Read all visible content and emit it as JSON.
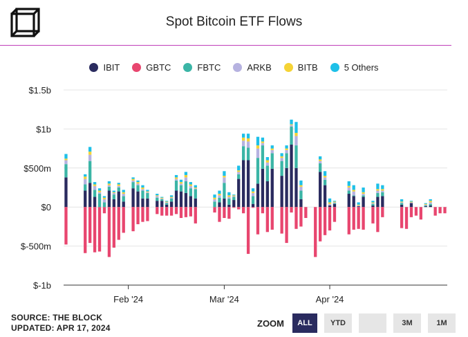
{
  "title": "Spot Bitcoin ETF Flows",
  "source": "SOURCE: THE BLOCK",
  "updated": "UPDATED: APR 17, 2024",
  "zoom": {
    "label": "ZOOM",
    "buttons": [
      "ALL",
      "YTD",
      "",
      "3M",
      "1M"
    ],
    "active": "ALL"
  },
  "colors": {
    "IBIT": "#2a2b5f",
    "GBTC": "#e8466f",
    "FBTC": "#3bb5a6",
    "ARKB": "#b6b2e0",
    "BITB": "#f5d335",
    "5 Others": "#1ec0e8"
  },
  "chart_data": {
    "type": "bar",
    "stacked": true,
    "title": "Spot Bitcoin ETF Flows",
    "ylim": [
      -1000,
      1500
    ],
    "yticks": [
      -1000,
      -500,
      0,
      500,
      1000,
      1500
    ],
    "ytick_labels": [
      "$-1b",
      "$-500m",
      "$0",
      "$500m",
      "$1b",
      "$1.5b"
    ],
    "xtick_labels": [
      "Feb '24",
      "Mar '24",
      "Apr '24"
    ],
    "xtick_positions": [
      13,
      33,
      55
    ],
    "legend": [
      "IBIT",
      "GBTC",
      "FBTC",
      "ARKB",
      "BITB",
      "5 Others"
    ],
    "units": "USD millions",
    "series": [
      {
        "name": "IBIT",
        "values": [
          380,
          0,
          0,
          0,
          210,
          310,
          130,
          0,
          0,
          210,
          100,
          200,
          70,
          0,
          240,
          200,
          110,
          110,
          0,
          80,
          80,
          30,
          70,
          210,
          200,
          180,
          140,
          110,
          0,
          0,
          0,
          0,
          60,
          110,
          30,
          90,
          360,
          600,
          600,
          40,
          300,
          490,
          330,
          490,
          0,
          400,
          500,
          800,
          500,
          100,
          0,
          0,
          0,
          450,
          280,
          20,
          40,
          0,
          0,
          170,
          140,
          10,
          130,
          0,
          20,
          130,
          140,
          0,
          0,
          0,
          30,
          0,
          50,
          0,
          0,
          10,
          20,
          0,
          0,
          0
        ]
      },
      {
        "name": "GBTC",
        "values": [
          -480,
          0,
          0,
          0,
          -590,
          -460,
          -580,
          -570,
          -80,
          -640,
          -520,
          -420,
          -330,
          0,
          -310,
          -220,
          -190,
          -180,
          0,
          -90,
          -110,
          -110,
          -110,
          -90,
          -140,
          -130,
          -120,
          -210,
          0,
          0,
          0,
          -70,
          -190,
          -140,
          -150,
          -10,
          -30,
          -80,
          -600,
          -10,
          -350,
          -80,
          -320,
          -290,
          0,
          -340,
          -460,
          -70,
          -280,
          -250,
          -140,
          0,
          -640,
          -440,
          -360,
          -300,
          -190,
          0,
          0,
          -350,
          -290,
          -280,
          -290,
          0,
          -210,
          -320,
          -130,
          0,
          0,
          0,
          -270,
          -280,
          -130,
          -110,
          -160,
          0,
          0,
          -110,
          -80,
          -80
        ]
      },
      {
        "name": "FBTC",
        "values": [
          170,
          0,
          0,
          0,
          80,
          280,
          90,
          170,
          60,
          50,
          60,
          50,
          70,
          0,
          80,
          80,
          100,
          70,
          0,
          40,
          20,
          20,
          40,
          130,
          80,
          150,
          100,
          120,
          0,
          0,
          0,
          70,
          60,
          200,
          80,
          40,
          60,
          180,
          160,
          100,
          330,
          300,
          200,
          200,
          0,
          190,
          190,
          230,
          290,
          110,
          0,
          0,
          0,
          110,
          70,
          0,
          10,
          0,
          0,
          40,
          10,
          0,
          20,
          0,
          20,
          50,
          50,
          0,
          0,
          0,
          20,
          0,
          0,
          0,
          0,
          10,
          20,
          0,
          0,
          0
        ]
      },
      {
        "name": "ARKB",
        "values": [
          50,
          0,
          0,
          0,
          70,
          80,
          50,
          20,
          40,
          20,
          20,
          20,
          30,
          0,
          20,
          20,
          20,
          10,
          0,
          20,
          10,
          10,
          10,
          20,
          20,
          50,
          30,
          10,
          0,
          0,
          0,
          30,
          30,
          70,
          20,
          10,
          30,
          70,
          80,
          40,
          120,
          30,
          40,
          40,
          0,
          40,
          40,
          20,
          120,
          50,
          0,
          0,
          0,
          30,
          30,
          20,
          10,
          0,
          0,
          40,
          50,
          10,
          20,
          0,
          10,
          30,
          20,
          0,
          0,
          0,
          10,
          0,
          10,
          0,
          0,
          10,
          20,
          0,
          0,
          0
        ]
      },
      {
        "name": "BITB",
        "values": [
          20,
          0,
          0,
          0,
          30,
          40,
          20,
          20,
          20,
          20,
          10,
          20,
          20,
          0,
          20,
          20,
          20,
          10,
          0,
          10,
          10,
          10,
          10,
          20,
          20,
          30,
          20,
          10,
          0,
          0,
          0,
          20,
          20,
          20,
          20,
          10,
          20,
          40,
          40,
          20,
          40,
          20,
          30,
          20,
          0,
          20,
          20,
          10,
          40,
          20,
          0,
          0,
          0,
          20,
          20,
          20,
          10,
          0,
          0,
          20,
          20,
          10,
          20,
          0,
          10,
          20,
          20,
          0,
          0,
          0,
          10,
          0,
          10,
          0,
          0,
          10,
          20,
          0,
          0,
          0
        ]
      },
      {
        "name": "5 Others",
        "values": [
          60,
          0,
          0,
          0,
          30,
          60,
          30,
          30,
          20,
          30,
          20,
          20,
          30,
          0,
          20,
          20,
          30,
          20,
          0,
          20,
          10,
          10,
          20,
          30,
          30,
          40,
          30,
          30,
          0,
          0,
          0,
          40,
          40,
          60,
          40,
          10,
          60,
          50,
          60,
          40,
          110,
          50,
          40,
          40,
          0,
          40,
          40,
          60,
          140,
          60,
          0,
          0,
          0,
          40,
          60,
          50,
          10,
          0,
          0,
          60,
          60,
          30,
          60,
          0,
          20,
          70,
          50,
          0,
          0,
          0,
          30,
          0,
          10,
          0,
          0,
          10,
          20,
          0,
          0,
          0
        ]
      }
    ]
  }
}
